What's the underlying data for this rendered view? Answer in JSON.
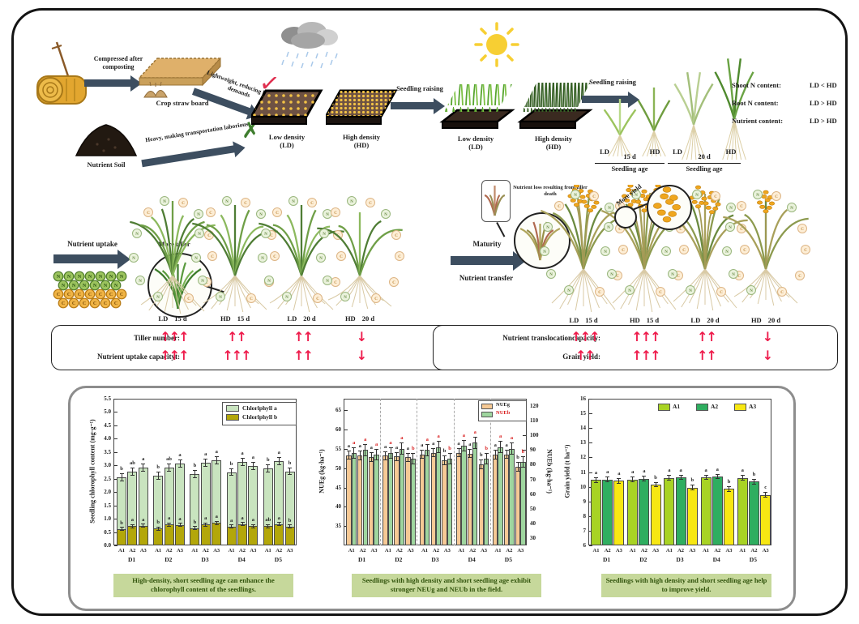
{
  "top": {
    "compressed_label": "Compressed after composting",
    "straw_board_label": "Crop straw board",
    "lightweight_label": "Lightweight, reducing labor demands",
    "heavy_label": "Heavy, making transportation laborious",
    "nutrient_soil_label": "Nutrient Soil",
    "check_icon": "✓",
    "cross_icon": "✗",
    "low_density_name": "Low density",
    "ld_abbr": "(LD)",
    "high_density_name": "High density",
    "hd_abbr": "(HD)",
    "seedling_raising_label": "Seedling raising",
    "ages": [
      {
        "ld": "LD",
        "age": "15 d",
        "hd": "HD",
        "caption": "Seedling age"
      },
      {
        "ld": "LD",
        "age": "20 d",
        "hd": "HD",
        "caption": "Seedling age"
      }
    ],
    "n_rows": [
      {
        "label": "Shoot N content:",
        "value": "LD  <  HD"
      },
      {
        "label": "Root N content:",
        "value": "LD  >  HD"
      },
      {
        "label": "Nutrient content:",
        "value": "LD  >  HD"
      }
    ]
  },
  "middle": {
    "nutrient_uptake_label": "Nutrient uptake",
    "more_tiller_label": "More tiller",
    "maturity_label": "Maturity",
    "nutrient_transfer_label": "Nutrient transfer",
    "tiller_death_label": "Nutrient loss resulting from tiller death",
    "more_yield_label": "More yield",
    "veg_plants": [
      {
        "den": "LD",
        "age": "15 d"
      },
      {
        "den": "HD",
        "age": "15 d"
      },
      {
        "den": "LD",
        "age": "20 d"
      },
      {
        "den": "HD",
        "age": "20 d"
      }
    ],
    "mature_plants": [
      {
        "den": "LD",
        "age": "15 d"
      },
      {
        "den": "HD",
        "age": "15 d"
      },
      {
        "den": "LD",
        "age": "20 d"
      },
      {
        "den": "HD",
        "age": "20 d"
      }
    ]
  },
  "summary": {
    "left_rows": [
      {
        "label": "Tiller number:",
        "arrows": [
          "↑↑↑",
          "↑↑",
          "↑↑",
          "↓"
        ]
      },
      {
        "label": "Nutrient uptake capacityt:",
        "arrows": [
          "↑↑↑",
          "↑↑↑",
          "↑↑",
          "↓"
        ]
      }
    ],
    "right_rows": [
      {
        "label": "Nutrient translocationcapacity:",
        "arrows": [
          "↑↑↑",
          "↑↑↑",
          "↑↑",
          "↓"
        ]
      },
      {
        "label": "Grain yield:",
        "arrows": [
          "↑↑",
          "↑↑↑",
          "↑↑",
          "↓"
        ]
      }
    ]
  },
  "chart_data": [
    {
      "type": "bar",
      "subtype": "stacked",
      "ylabel": "Seedling chlorophyll content (mg·g⁻¹)",
      "ylim": [
        0,
        5.5
      ],
      "ytick_step": 0.5,
      "group_labels": [
        "D1",
        "D2",
        "D3",
        "D4",
        "D5"
      ],
      "bar_labels": [
        "A1",
        "A2",
        "A3"
      ],
      "legend": [
        {
          "name": "Chlorlphyll a",
          "color": "#c9e4bf"
        },
        {
          "name": "Chlorlphyll b",
          "color": "#b3a70a"
        }
      ],
      "totals": [
        2.55,
        2.77,
        2.93,
        2.62,
        2.93,
        3.08,
        2.67,
        3.1,
        3.2,
        2.75,
        3.12,
        2.98,
        2.88,
        3.17,
        2.78
      ],
      "series": [
        {
          "name": "Chlorlphyll b",
          "color": "#b3a70a",
          "values": [
            0.62,
            0.72,
            0.73,
            0.63,
            0.78,
            0.77,
            0.65,
            0.78,
            0.85,
            0.7,
            0.8,
            0.72,
            0.72,
            0.8,
            0.7
          ],
          "letters": [
            "b",
            "a",
            "a",
            "b",
            "a",
            "a",
            "b",
            "a",
            "a",
            "a",
            "a",
            "a",
            "ab",
            "a",
            "b"
          ]
        },
        {
          "name": "Chlorlphyll a",
          "color": "#c9e4bf",
          "values": [
            1.93,
            2.05,
            2.2,
            1.99,
            2.15,
            2.31,
            2.02,
            2.32,
            2.35,
            2.05,
            2.32,
            2.26,
            2.16,
            2.37,
            2.08
          ],
          "letters": [
            "b",
            "ab",
            "a",
            "b",
            "ab",
            "a",
            "b",
            "a",
            "a",
            "b",
            "a",
            "a",
            "b",
            "a",
            "b"
          ]
        }
      ],
      "err": 0.15,
      "caption": "High-density, short seedling age can enhance the chlorophyll content of the seedlings."
    },
    {
      "type": "bar",
      "subtype": "grouped-dual-axis",
      "ylabel_left": "NUEg (kg·ha⁻¹)",
      "ylabel_right": "NUEb (kg·ha⁻¹)",
      "ylim_left": [
        30,
        68
      ],
      "yticks_left": [
        35,
        40,
        45,
        50,
        55,
        60,
        65
      ],
      "ylim_right": [
        25,
        125
      ],
      "yticks_right": [
        30,
        40,
        50,
        60,
        70,
        80,
        90,
        100,
        110,
        120
      ],
      "group_labels": [
        "D1",
        "D2",
        "D3",
        "D4",
        "D5"
      ],
      "bar_labels": [
        "A1",
        "A2",
        "A3"
      ],
      "legend": [
        {
          "name": "NUEg",
          "color": "#f6c995",
          "text_color": "#222222"
        },
        {
          "name": "NUEb",
          "color": "#9fd69f",
          "text_color": "#d92020"
        }
      ],
      "series": [
        {
          "name": "NUEg",
          "axis": "left",
          "color": "#f6c995",
          "values": [
            53.4,
            53.3,
            52.9,
            53.2,
            53.0,
            52.8,
            53.6,
            54.0,
            52.0,
            54.0,
            53.8,
            51.0,
            53.5,
            53.6,
            50.4
          ],
          "letters": [
            "a",
            "a",
            "a",
            "a",
            "a",
            "a",
            "a",
            "a",
            "b",
            "a",
            "a",
            "b",
            "a",
            "a",
            "b"
          ]
        },
        {
          "name": "NUEb",
          "axis": "right",
          "color": "#9fd69f",
          "values": [
            88,
            90,
            87,
            88,
            91,
            84,
            90,
            92,
            84,
            93,
            95,
            84,
            92,
            91,
            82
          ],
          "letters": [
            "a",
            "a",
            "a",
            "a",
            "a",
            "b",
            "a",
            "a",
            "b",
            "a",
            "a",
            "b",
            "a",
            "a",
            "b"
          ]
        }
      ],
      "err_left": 1.2,
      "err_right": 4,
      "caption": "Seedlings with high density and short seedling age exhibit stronger NEUg and NEUb in the field."
    },
    {
      "type": "bar",
      "subtype": "grouped",
      "ylabel": "Grain yield (t ha⁻¹)",
      "ylim": [
        6,
        16
      ],
      "ytick_step": 1,
      "group_labels": [
        "D1",
        "D2",
        "D3",
        "D4",
        "D5"
      ],
      "bar_labels": [
        "A1",
        "A2",
        "A3"
      ],
      "legend": [
        {
          "name": "A1",
          "color": "#a8d324"
        },
        {
          "name": "A2",
          "color": "#2fae60"
        },
        {
          "name": "A3",
          "color": "#f7e713"
        }
      ],
      "series": [
        {
          "name": "Grain yield",
          "values": [
            10.45,
            10.5,
            10.4,
            10.5,
            10.55,
            10.15,
            10.6,
            10.65,
            9.95,
            10.65,
            10.7,
            9.85,
            10.6,
            10.35,
            9.45
          ],
          "letters": [
            "a",
            "a",
            "a",
            "a",
            "a",
            "b",
            "a",
            "a",
            "b",
            "a",
            "a",
            "b",
            "a",
            "b",
            "c"
          ]
        }
      ],
      "err": 0.18,
      "caption": "Seedlings with high density and short seedling age help to improve yield."
    }
  ]
}
